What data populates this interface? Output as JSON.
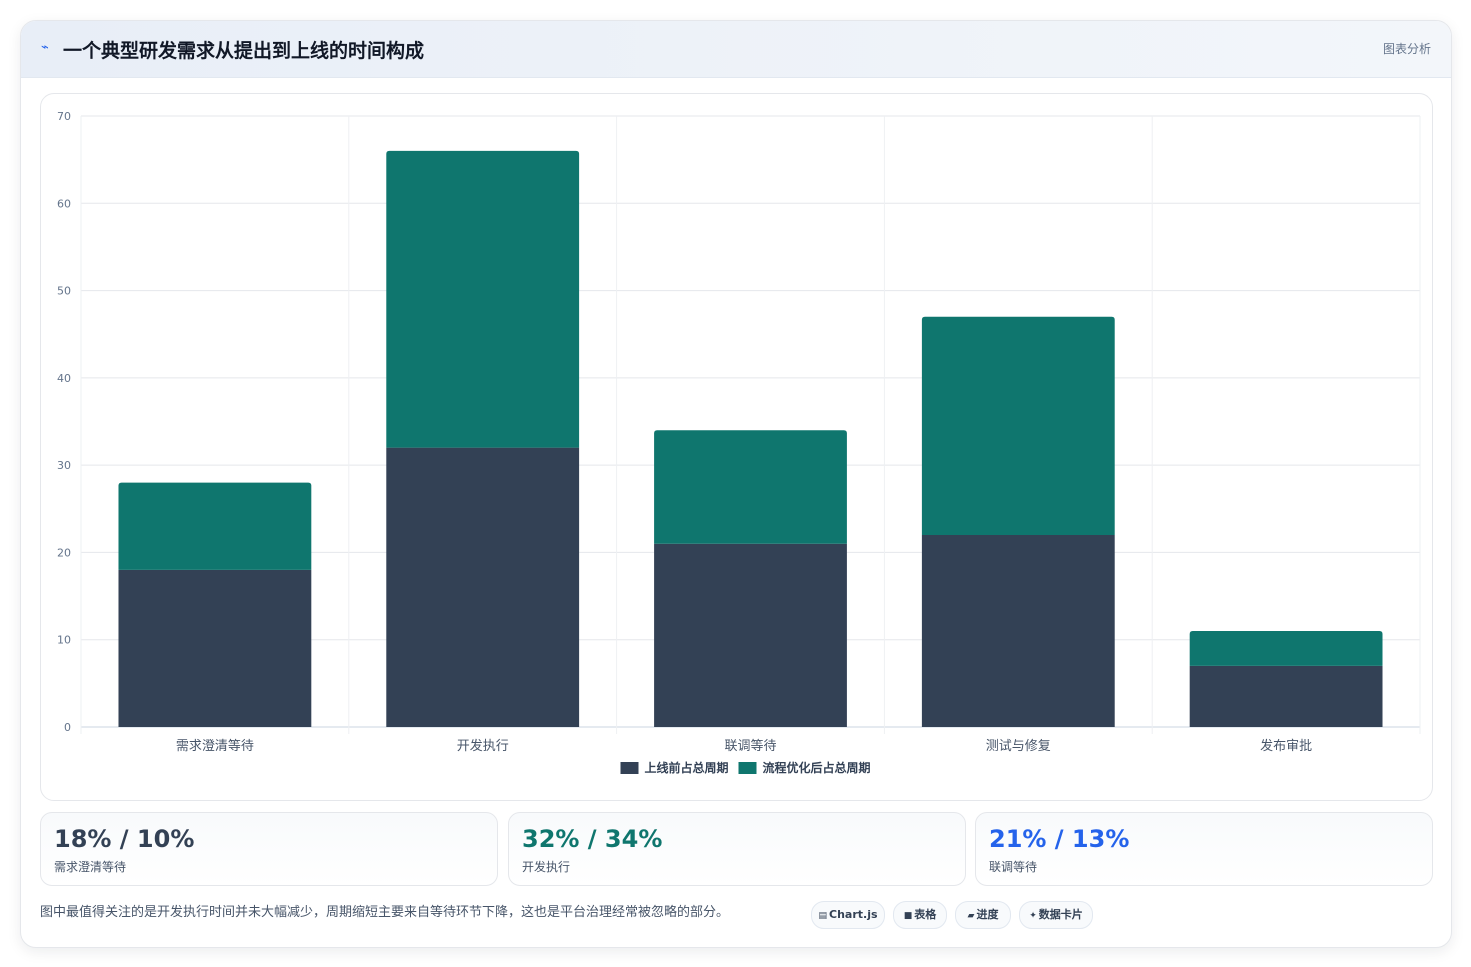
{
  "header": {
    "icon": "lightning-icon",
    "title": "一个典型研发需求从提出到上线的时间构成",
    "tag": "图表分析"
  },
  "chart_data": {
    "type": "bar",
    "stacked": true,
    "categories": [
      "需求澄清等待",
      "开发执行",
      "联调等待",
      "测试与修复",
      "发布审批"
    ],
    "series": [
      {
        "name": "上线前占总周期",
        "color": "#334155",
        "values": [
          18,
          32,
          21,
          22,
          7
        ]
      },
      {
        "name": "流程优化后占总周期",
        "color": "#0f766e",
        "values": [
          10,
          34,
          13,
          25,
          4
        ]
      }
    ],
    "ylim": [
      0,
      70
    ],
    "yticks": [
      0,
      10,
      20,
      30,
      40,
      50,
      60,
      70
    ],
    "grid": true,
    "legend": "bottom",
    "title": "",
    "xlabel": "",
    "ylabel": ""
  },
  "stats": [
    {
      "value": "18% / 10%",
      "label": "需求澄清等待",
      "color": "#334155"
    },
    {
      "value": "32% / 34%",
      "label": "开发执行",
      "color": "#0f766e"
    },
    {
      "value": "21% / 13%",
      "label": "联调等待",
      "color": "#2563eb"
    }
  ],
  "note": "图中最值得关注的是开发执行时间并未大幅减少，周期缩短主要来自等待环节下降，这也是平台治理经常被忽略的部分。",
  "chips": [
    {
      "icon": "▤",
      "label": "Chart.js"
    },
    {
      "icon": "■",
      "label": "表格"
    },
    {
      "icon": "▰",
      "label": "进度"
    },
    {
      "icon": "✦",
      "label": "数据卡片"
    }
  ]
}
